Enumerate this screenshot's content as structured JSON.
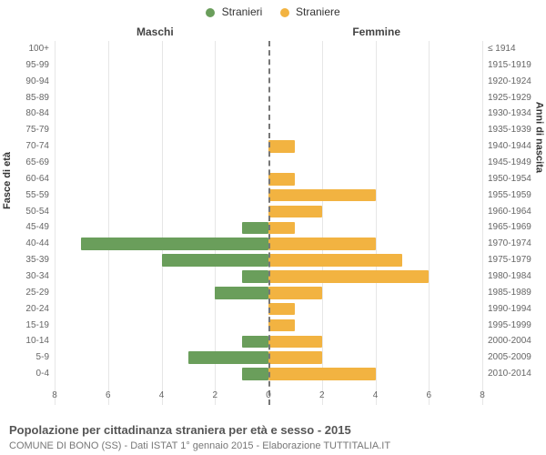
{
  "chart": {
    "type": "population-pyramid",
    "legend": {
      "male": {
        "label": "Stranieri",
        "color": "#6a9e5b"
      },
      "female": {
        "label": "Straniere",
        "color": "#f2b341"
      }
    },
    "side_titles": {
      "left": "Maschi",
      "right": "Femmine"
    },
    "y_axis_left_title": "Fasce di età",
    "y_axis_right_title": "Anni di nascita",
    "x_axis": {
      "max": 8,
      "ticks": [
        8,
        6,
        4,
        2,
        0,
        2,
        4,
        6,
        8
      ]
    },
    "background_color": "#ffffff",
    "grid_color": "#e6e6e6",
    "center_line_color": "#777777",
    "label_color": "#666666",
    "tick_fontsize": 10,
    "label_fontsize": 10,
    "legend_fontsize": 12,
    "title_fontsize": 13,
    "rows": [
      {
        "age": "100+",
        "birth": "≤ 1914",
        "male": 0,
        "female": 0
      },
      {
        "age": "95-99",
        "birth": "1915-1919",
        "male": 0,
        "female": 0
      },
      {
        "age": "90-94",
        "birth": "1920-1924",
        "male": 0,
        "female": 0
      },
      {
        "age": "85-89",
        "birth": "1925-1929",
        "male": 0,
        "female": 0
      },
      {
        "age": "80-84",
        "birth": "1930-1934",
        "male": 0,
        "female": 0
      },
      {
        "age": "75-79",
        "birth": "1935-1939",
        "male": 0,
        "female": 0
      },
      {
        "age": "70-74",
        "birth": "1940-1944",
        "male": 0,
        "female": 1
      },
      {
        "age": "65-69",
        "birth": "1945-1949",
        "male": 0,
        "female": 0
      },
      {
        "age": "60-64",
        "birth": "1950-1954",
        "male": 0,
        "female": 1
      },
      {
        "age": "55-59",
        "birth": "1955-1959",
        "male": 0,
        "female": 4
      },
      {
        "age": "50-54",
        "birth": "1960-1964",
        "male": 0,
        "female": 2
      },
      {
        "age": "45-49",
        "birth": "1965-1969",
        "male": 1,
        "female": 1
      },
      {
        "age": "40-44",
        "birth": "1970-1974",
        "male": 7,
        "female": 4
      },
      {
        "age": "35-39",
        "birth": "1975-1979",
        "male": 4,
        "female": 5
      },
      {
        "age": "30-34",
        "birth": "1980-1984",
        "male": 1,
        "female": 6
      },
      {
        "age": "25-29",
        "birth": "1985-1989",
        "male": 2,
        "female": 2
      },
      {
        "age": "20-24",
        "birth": "1990-1994",
        "male": 0,
        "female": 1
      },
      {
        "age": "15-19",
        "birth": "1995-1999",
        "male": 0,
        "female": 1
      },
      {
        "age": "10-14",
        "birth": "2000-2004",
        "male": 1,
        "female": 2
      },
      {
        "age": "5-9",
        "birth": "2005-2009",
        "male": 3,
        "female": 2
      },
      {
        "age": "0-4",
        "birth": "2010-2014",
        "male": 1,
        "female": 4
      }
    ],
    "footer_title": "Popolazione per cittadinanza straniera per età e sesso - 2015",
    "footer_sub": "COMUNE DI BONO (SS) - Dati ISTAT 1° gennaio 2015 - Elaborazione TUTTITALIA.IT"
  }
}
